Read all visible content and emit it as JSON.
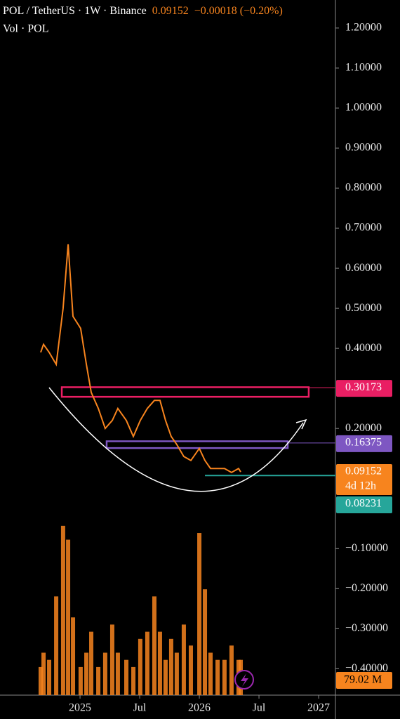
{
  "chart_data": [
    {
      "type": "line",
      "title": "POL / TetherUS · 1W · Binance",
      "last_price": 0.09152,
      "change": "−0.00018 (−0.20%)",
      "countdown": "4d 12h",
      "color": "#f7841e",
      "x": [
        2024.67,
        2024.694,
        2024.741,
        2024.8,
        2024.858,
        2024.9,
        2024.941,
        2025.005,
        2025.053,
        2025.094,
        2025.153,
        2025.211,
        2025.27,
        2025.317,
        2025.388,
        2025.447,
        2025.505,
        2025.564,
        2025.623,
        2025.67,
        2025.717,
        2025.764,
        2025.811,
        2025.87,
        2025.929,
        2026.0,
        2026.047,
        2026.094,
        2026.153,
        2026.211,
        2026.27,
        2026.329,
        2026.347
      ],
      "values": [
        0.39,
        0.41,
        0.39,
        0.36,
        0.5,
        0.66,
        0.48,
        0.45,
        0.36,
        0.29,
        0.25,
        0.2,
        0.22,
        0.25,
        0.22,
        0.18,
        0.22,
        0.25,
        0.27,
        0.27,
        0.22,
        0.18,
        0.16,
        0.13,
        0.12,
        0.15,
        0.12,
        0.1,
        0.1,
        0.1,
        0.09,
        0.1,
        0.09152
      ],
      "xlim": [
        2024.329,
        2027.141
      ],
      "xticks": [
        2025,
        {
          "value": 2025.5,
          "label": "Jul"
        },
        2026,
        {
          "value": 2026.5,
          "label": "Jul"
        },
        2027
      ],
      "ylim": [
        -0.466,
        1.27
      ],
      "yticks": [
        {
          "value": 1.2,
          "label": "1.20000"
        },
        {
          "value": 1.1,
          "label": "1.10000"
        },
        {
          "value": 1.0,
          "label": "1.00000"
        },
        {
          "value": 0.9,
          "label": "0.90000"
        },
        {
          "value": 0.8,
          "label": "0.80000"
        },
        {
          "value": 0.7,
          "label": "0.70000"
        },
        {
          "value": 0.6,
          "label": "0.60000"
        },
        {
          "value": 0.5,
          "label": "0.50000"
        },
        {
          "value": 0.4,
          "label": "0.40000"
        },
        {
          "value": 0.2,
          "label": "0.20000"
        },
        {
          "value": -0.1,
          "label": "−0.10000"
        },
        {
          "value": -0.2,
          "label": "−0.20000"
        },
        {
          "value": -0.3,
          "label": "−0.30000"
        },
        {
          "value": -0.4,
          "label": "−0.40000"
        }
      ],
      "levels": [
        {
          "value": 0.30173,
          "color": "#e91e63",
          "from": 2026.917
        },
        {
          "value": 0.16375,
          "color": "#7e57c2",
          "from": 2026.741
        },
        {
          "value": 0.08231,
          "color": "#26a69a",
          "from": 2026.047
        }
      ],
      "zones": [
        {
          "x": [
            2024.847,
            2026.917
          ],
          "y": [
            0.279,
            0.303
          ],
          "color": "#e91e63"
        },
        {
          "x": [
            2025.223,
            2026.741
          ],
          "y": [
            0.151,
            0.168
          ],
          "color": "#7e57c2"
        }
      ]
    },
    {
      "type": "bar",
      "title": "Vol · POL",
      "color": "#f7841e",
      "last_label": "79.02 M",
      "x": [
        2024.67,
        2024.694,
        2024.741,
        2024.8,
        2024.858,
        2024.9,
        2024.941,
        2025.005,
        2025.053,
        2025.094,
        2025.153,
        2025.211,
        2025.27,
        2025.317,
        2025.388,
        2025.447,
        2025.505,
        2025.564,
        2025.623,
        2025.67,
        2025.717,
        2025.764,
        2025.811,
        2025.87,
        2025.929,
        2026.0,
        2026.047,
        2026.094,
        2026.153,
        2026.211,
        2026.27,
        2026.329,
        2026.347
      ],
      "values": [
        63,
        95,
        79,
        221,
        379,
        348,
        174,
        63,
        95,
        142,
        63,
        95,
        158,
        95,
        79,
        63,
        126,
        142,
        221,
        142,
        79,
        126,
        95,
        158,
        111,
        363,
        237,
        95,
        79,
        79,
        111,
        79,
        79.02
      ],
      "ylim": [
        0,
        1556
      ]
    }
  ]
}
